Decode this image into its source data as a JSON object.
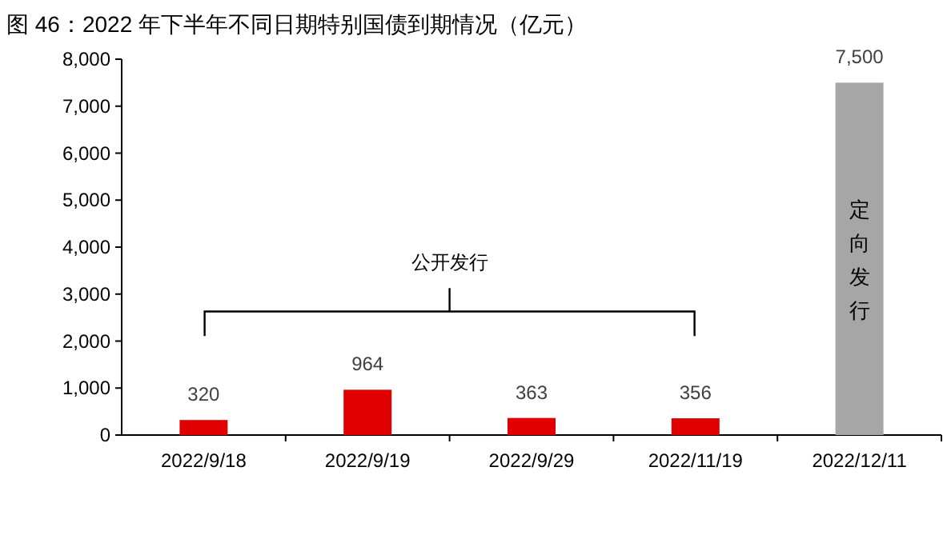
{
  "chart_data": {
    "type": "bar",
    "title": "图 46：2022 年下半年不同日期特别国债到期情况（亿元）",
    "categories": [
      "2022/9/18",
      "2022/9/19",
      "2022/9/29",
      "2022/11/19",
      "2022/12/11"
    ],
    "values": [
      320,
      964,
      363,
      356,
      7500
    ],
    "colors": [
      "#e00000",
      "#e00000",
      "#e00000",
      "#e00000",
      "#a6a6a6"
    ],
    "value_labels": [
      "320",
      "964",
      "363",
      "356",
      "7,500"
    ],
    "ylim": [
      0,
      8000
    ],
    "yticks": [
      0,
      {
        "value": 1000,
        "label": "1,000"
      },
      {
        "value": 2000,
        "label": "2,000"
      },
      {
        "value": 3000,
        "label": "3,000"
      },
      {
        "value": 4000,
        "label": "4,000"
      },
      {
        "value": 5000,
        "label": "5,000"
      },
      {
        "value": 6000,
        "label": "6,000"
      },
      {
        "value": 7000,
        "label": "7,000"
      },
      {
        "value": 8000,
        "label": "8,000"
      }
    ],
    "grid": false,
    "annotations": [
      "公开发行",
      "定向发行"
    ]
  }
}
